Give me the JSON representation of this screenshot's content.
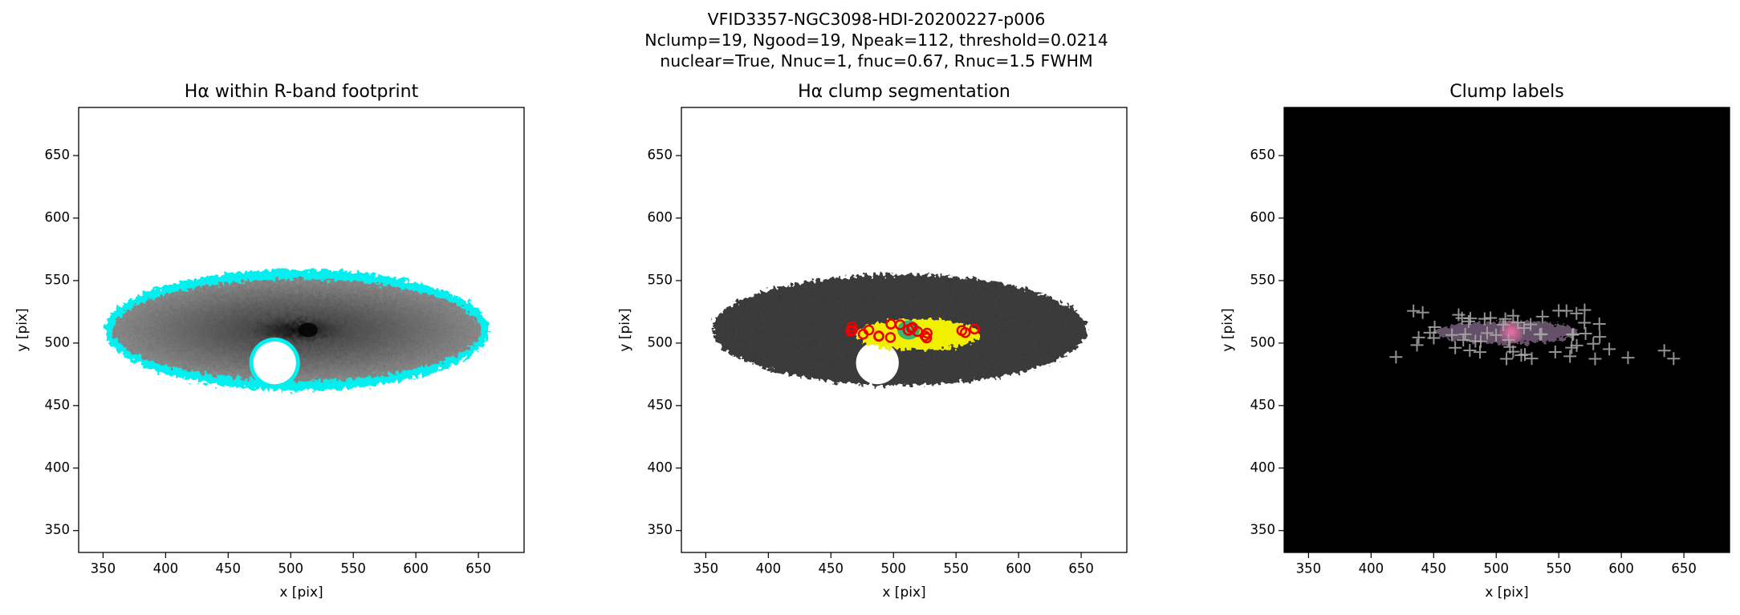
{
  "suptitle": [
    "VFID3357-NGC3098-HDI-20200227-p006",
    "Nclump=19, Ngood=19, Npeak=112, threshold=0.0214",
    "nuclear=True, Nnuc=1, fnuc=0.67, Rnuc=1.5 FWHM"
  ],
  "chart_data": [
    {
      "type": "image",
      "title": "Hα within R-band footprint",
      "xlabel": "x [pix]",
      "ylabel": "y [pix]",
      "background": "#ffffff",
      "xlim": [
        330.5,
        686.5
      ],
      "ylim": [
        332.5,
        688.5
      ],
      "xticks": [
        350,
        400,
        450,
        500,
        550,
        600,
        650
      ],
      "yticks": [
        350,
        400,
        450,
        500,
        550,
        600,
        650
      ]
    },
    {
      "type": "image",
      "title": "Hα clump segmentation",
      "xlabel": "x [pix]",
      "ylabel": "y [pix]",
      "background": "#ffffff",
      "xlim": [
        330.5,
        686.5
      ],
      "ylim": [
        332.5,
        688.5
      ],
      "xticks": [
        350,
        400,
        450,
        500,
        550,
        600,
        650
      ],
      "yticks": [
        350,
        400,
        450,
        500,
        550,
        600,
        650
      ]
    },
    {
      "type": "image",
      "title": "Clump labels",
      "xlabel": "x [pix]",
      "ylabel": "y [pix]",
      "background": "#000000",
      "xlim": [
        330.5,
        686.5
      ],
      "ylim": [
        332.5,
        688.5
      ],
      "xticks": [
        350,
        400,
        450,
        500,
        550,
        600,
        650
      ],
      "yticks": [
        350,
        400,
        450,
        500,
        550,
        600,
        650
      ]
    }
  ]
}
